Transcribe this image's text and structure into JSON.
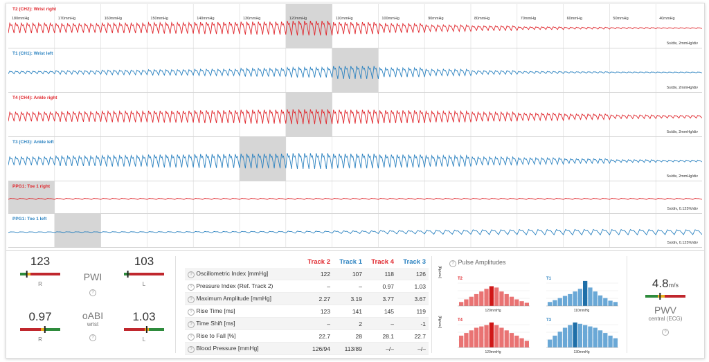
{
  "colors": {
    "red": "#e0282e",
    "blue": "#2b82c0",
    "bar_red": "#e97373",
    "bar_red_dark": "#d01818",
    "bar_blue": "#6aa8d6",
    "bar_blue_dark": "#1f6fa8",
    "highlight": "#d6d6d6"
  },
  "pressure_steps": [
    "180mmHg",
    "170mmHg",
    "160mmHg",
    "150mmHg",
    "140mmHg",
    "130mmHg",
    "120mmHg",
    "110mmHg",
    "100mmHg",
    "90mmHg",
    "80mmHg",
    "70mmHg",
    "60mmHg",
    "50mmHg",
    "40mmHg"
  ],
  "tracks": [
    {
      "label": "T2 (CH2): Wrist right",
      "color": "red",
      "scale": "5s/div, 2mmHg/div",
      "highlight_step": 6,
      "amplitudes": [
        0.55,
        0.5,
        0.55,
        0.6,
        0.65,
        0.7,
        0.8,
        0.65,
        0.5,
        0.35,
        0.25,
        0.15,
        0.1,
        0.07,
        0.05
      ]
    },
    {
      "label": "T1 (CH1): Wrist left",
      "color": "blue",
      "scale": "5s/div, 2mmHg/div",
      "highlight_step": 7,
      "amplitudes": [
        0.15,
        0.2,
        0.25,
        0.3,
        0.35,
        0.45,
        0.55,
        0.7,
        0.5,
        0.35,
        0.2,
        0.12,
        0.08,
        0.06,
        0.05
      ]
    },
    {
      "label": "T4 (CH4): Ankle right",
      "color": "red",
      "scale": "5s/div, 2mmHg/div",
      "highlight_step": 6,
      "amplitudes": [
        0.5,
        0.55,
        0.6,
        0.65,
        0.7,
        0.75,
        0.8,
        0.75,
        0.7,
        0.6,
        0.5,
        0.4,
        0.3,
        0.2,
        0.15
      ]
    },
    {
      "label": "T3 (CH3): Ankle left",
      "color": "blue",
      "scale": "5s/div, 2mmHg/div",
      "highlight_step": 5,
      "amplitudes": [
        0.45,
        0.55,
        0.6,
        0.7,
        0.75,
        0.8,
        0.85,
        0.8,
        0.7,
        0.6,
        0.45,
        0.35,
        0.25,
        0.15,
        0.1
      ]
    },
    {
      "label": "PPG1: Toe 1 right",
      "color": "red",
      "scale": "5s/div, 0.125%/div",
      "highlight_step": 0,
      "amplitudes": [
        0.08,
        0.08,
        0.08,
        0.08,
        0.08,
        0.08,
        0.08,
        0.08,
        0.08,
        0.08,
        0.08,
        0.08,
        0.08,
        0.08,
        0.08
      ]
    },
    {
      "label": "PPG1: Toe 1 left",
      "color": "blue",
      "scale": "5s/div, 0.125%/div",
      "highlight_step": 1,
      "amplitudes": [
        0.05,
        0.06,
        0.07,
        0.08,
        0.1,
        0.12,
        0.15,
        0.2,
        0.25,
        0.3,
        0.35,
        0.38,
        0.4,
        0.38,
        0.35
      ]
    }
  ],
  "indices": {
    "pwi": {
      "title": "PWI",
      "right_value": "123",
      "right_side": "R",
      "left_value": "103",
      "left_side": "L",
      "right_marker": 0.15,
      "left_marker": 0.08
    },
    "oabi": {
      "title": "oABI",
      "subtitle": "wrist",
      "right_value": "0.97",
      "right_side": "R",
      "left_value": "1.03",
      "left_side": "L",
      "right_marker": 0.6,
      "left_marker": 0.55
    }
  },
  "metrics": {
    "columns": [
      {
        "label": "Track 2",
        "color": "red"
      },
      {
        "label": "Track 1",
        "color": "blue"
      },
      {
        "label": "Track 4",
        "color": "red"
      },
      {
        "label": "Track 3",
        "color": "blue"
      }
    ],
    "rows": [
      {
        "label": "Oscillometric Index [mmHg]",
        "values": [
          "122",
          "107",
          "118",
          "126"
        ]
      },
      {
        "label": "Pressure Index (Ref. Track 2)",
        "values": [
          "–",
          "–",
          "0.97",
          "1.03"
        ]
      },
      {
        "label": "Maximum Amplitude [mmHg]",
        "values": [
          "2.27",
          "3.19",
          "3.77",
          "3.67"
        ]
      },
      {
        "label": "Rise Time [ms]",
        "values": [
          "123",
          "141",
          "145",
          "119"
        ]
      },
      {
        "label": "Time Shift [ms]",
        "values": [
          "–",
          "2",
          "–",
          "-1"
        ]
      },
      {
        "label": "Rise to Fall [%]",
        "values": [
          "22.7",
          "28",
          "28.1",
          "22.7"
        ]
      },
      {
        "label": "Blood Pressure [mmHg]",
        "values": [
          "126/94",
          "113/89",
          "–/–",
          "–/–"
        ]
      }
    ]
  },
  "pulse_amplitudes": {
    "title": "Pulse Amplitudes",
    "y_unit": "[mmHg]",
    "charts": [
      {
        "label": "T2",
        "color": "red",
        "peak_label": "120mmHg",
        "peak_index": 6,
        "values": [
          0.15,
          0.25,
          0.35,
          0.45,
          0.55,
          0.65,
          0.75,
          0.7,
          0.55,
          0.45,
          0.35,
          0.25,
          0.18,
          0.12
        ]
      },
      {
        "label": "T1",
        "color": "blue",
        "peak_label": "110mmHg",
        "peak_index": 7,
        "values": [
          0.15,
          0.22,
          0.3,
          0.38,
          0.45,
          0.55,
          0.65,
          0.95,
          0.7,
          0.55,
          0.4,
          0.3,
          0.2,
          0.15
        ]
      },
      {
        "label": "T4",
        "color": "red",
        "peak_label": "120mmHg",
        "peak_index": 6,
        "values": [
          0.45,
          0.55,
          0.65,
          0.75,
          0.8,
          0.85,
          0.95,
          0.85,
          0.75,
          0.65,
          0.55,
          0.45,
          0.35,
          0.25
        ]
      },
      {
        "label": "T3",
        "color": "blue",
        "peak_label": "130mmHg",
        "peak_index": 5,
        "values": [
          0.3,
          0.45,
          0.6,
          0.75,
          0.85,
          0.95,
          0.9,
          0.85,
          0.8,
          0.75,
          0.65,
          0.55,
          0.45,
          0.35
        ]
      }
    ]
  },
  "pwv": {
    "value": "4.8",
    "unit": "m/s",
    "title": "PWV",
    "subtitle": "central (ECG)",
    "marker": 0.35
  }
}
